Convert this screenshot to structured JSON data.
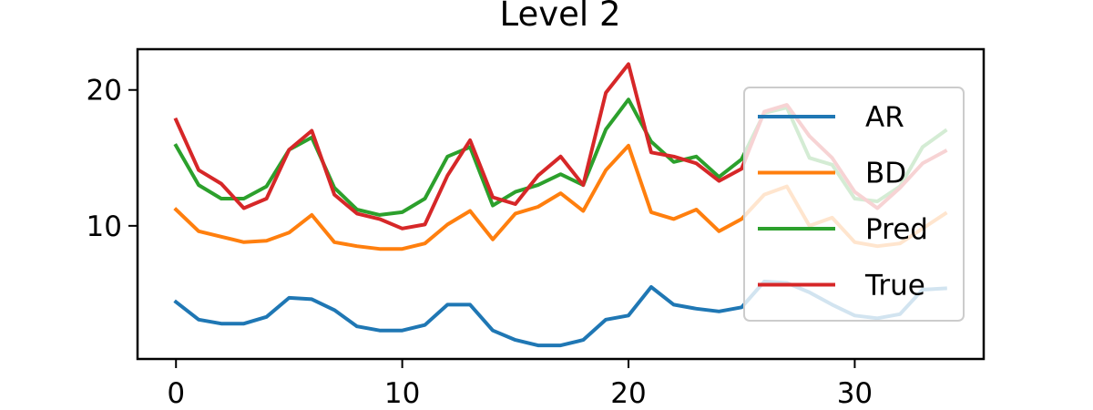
{
  "chart_data": {
    "type": "line",
    "title": "Level 2",
    "xlabel": "",
    "ylabel": "",
    "xlim": [
      -1.7,
      35.7
    ],
    "ylim": [
      0.2,
      23
    ],
    "xticks": [
      0,
      10,
      20,
      30
    ],
    "yticks": [
      10,
      20
    ],
    "grid": false,
    "legend_position": "right",
    "x": [
      0,
      1,
      2,
      3,
      4,
      5,
      6,
      7,
      8,
      9,
      10,
      11,
      12,
      13,
      14,
      15,
      16,
      17,
      18,
      19,
      20,
      21,
      22,
      23,
      24,
      25,
      26,
      27,
      28,
      29,
      30,
      31,
      32,
      33,
      34
    ],
    "series": [
      {
        "name": "AR",
        "color": "#1f77b4",
        "values": [
          4.4,
          3.1,
          2.8,
          2.8,
          3.3,
          4.7,
          4.6,
          3.8,
          2.6,
          2.3,
          2.3,
          2.7,
          4.2,
          4.2,
          2.3,
          1.6,
          1.2,
          1.2,
          1.6,
          3.1,
          3.4,
          5.5,
          4.2,
          3.9,
          3.7,
          4.0,
          5.9,
          5.8,
          5.1,
          4.2,
          3.4,
          3.2,
          3.5,
          5.3,
          5.4
        ]
      },
      {
        "name": "BD",
        "color": "#ff7f0e",
        "values": [
          11.2,
          9.6,
          9.2,
          8.8,
          8.9,
          9.5,
          10.8,
          8.8,
          8.5,
          8.3,
          8.3,
          8.7,
          10.1,
          11.1,
          9.0,
          10.9,
          11.4,
          12.4,
          11.1,
          14.1,
          15.9,
          11.0,
          10.5,
          11.2,
          9.6,
          10.5,
          12.3,
          12.9,
          10.0,
          10.6,
          8.8,
          8.5,
          8.7,
          9.8,
          10.9
        ]
      },
      {
        "name": "Pred",
        "color": "#2ca02c",
        "values": [
          15.9,
          13.0,
          12.0,
          12.0,
          12.9,
          15.6,
          16.5,
          12.8,
          11.2,
          10.8,
          11.0,
          12.0,
          15.1,
          15.8,
          11.5,
          12.5,
          13.0,
          13.8,
          13.0,
          17.1,
          19.3,
          16.2,
          14.7,
          15.1,
          13.6,
          14.9,
          18.3,
          18.7,
          15.0,
          14.5,
          12.0,
          11.8,
          12.9,
          15.8,
          17.0
        ]
      },
      {
        "name": "True",
        "color": "#d62728",
        "values": [
          17.8,
          14.1,
          13.1,
          11.3,
          12.0,
          15.6,
          17.0,
          12.3,
          10.9,
          10.5,
          9.8,
          10.1,
          13.7,
          16.3,
          12.1,
          11.6,
          13.7,
          15.1,
          13.0,
          19.8,
          21.9,
          15.4,
          15.1,
          14.6,
          13.3,
          14.2,
          18.4,
          18.9,
          16.6,
          15.0,
          12.5,
          11.3,
          12.8,
          14.6,
          15.5
        ]
      }
    ]
  }
}
